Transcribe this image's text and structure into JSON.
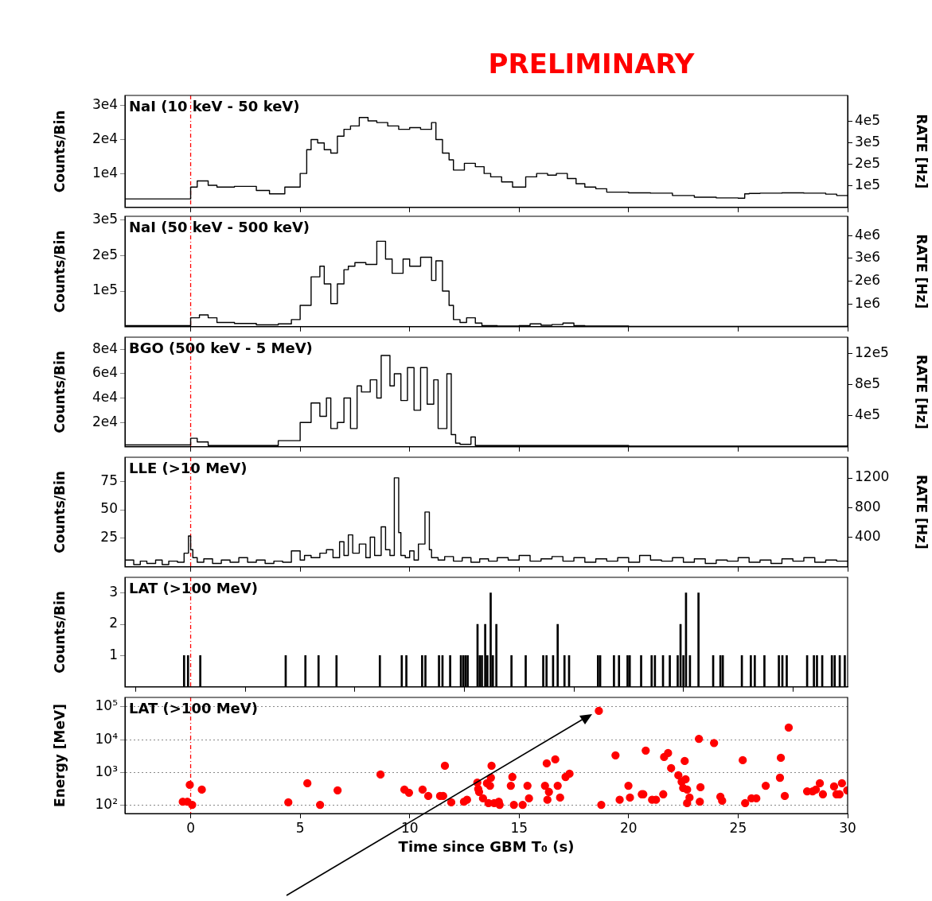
{
  "chart_data": [
    {
      "type": "step",
      "title": "PRELIMINARY",
      "ylabel": "Counts/Bin",
      "y2label": "RATE [Hz]",
      "annotations": [
        "NaI (10 keV - 50 keV)"
      ],
      "tick_labels": "y",
      "xlim": [
        -3,
        30
      ],
      "xticks": [
        0,
        5,
        10,
        15,
        20,
        25,
        30
      ],
      "ylim": [
        0,
        33000
      ],
      "yticks": [
        {
          "value": 10000,
          "label": "1e4"
        },
        {
          "value": 20000,
          "label": "2e4"
        },
        {
          "value": 30000,
          "label": "3e4"
        }
      ],
      "y2lim": [
        0,
        520000
      ],
      "y2ticks": [
        {
          "value": 100000,
          "label": "1e5"
        },
        {
          "value": 200000,
          "label": "2e5"
        },
        {
          "value": 300000,
          "label": "3e5"
        },
        {
          "value": 400000,
          "label": "4e5"
        }
      ],
      "ref_lines": [
        {
          "axis": "x",
          "value": 0,
          "color": "#ff0000",
          "line_style": "dashed"
        }
      ],
      "x": [
        -3,
        0,
        0.3,
        0.8,
        1.2,
        2,
        3,
        3.6,
        4.3,
        5,
        5.3,
        5.5,
        5.8,
        6.1,
        6.4,
        6.7,
        7,
        7.3,
        7.7,
        8.1,
        8.5,
        9,
        9.5,
        10,
        10.5,
        11,
        11.2,
        11.5,
        11.8,
        12,
        12.5,
        13,
        13.4,
        13.7,
        14.2,
        14.7,
        15.3,
        15.8,
        16.3,
        16.7,
        17.2,
        17.6,
        18,
        18.5,
        19,
        20,
        21,
        22,
        23,
        24,
        25,
        25.3,
        25.5,
        26,
        27,
        28,
        29,
        29.5,
        30
      ],
      "series": [
        {
          "color": "#000000",
          "values": [
            1200,
            2500,
            6000,
            7800,
            6500,
            6000,
            6200,
            5000,
            4000,
            6000,
            10000,
            17000,
            20000,
            19000,
            17000,
            16000,
            21000,
            23000,
            24000,
            26500,
            25500,
            25000,
            24000,
            23000,
            23500,
            23000,
            25000,
            20000,
            16000,
            14000,
            11000,
            13000,
            12000,
            10000,
            9000,
            7500,
            6000,
            9000,
            10000,
            9500,
            10000,
            8500,
            7000,
            6000,
            5500,
            4500,
            4300,
            4200,
            3500,
            3000,
            2800,
            2700,
            4000,
            4100,
            4200,
            4300,
            4200,
            3900,
            3500
          ]
        }
      ]
    },
    {
      "type": "step",
      "ylabel": "Counts/Bin",
      "y2label": "RATE [Hz]",
      "annotations": [
        "NaI (50 keV - 500 keV)"
      ],
      "tick_labels": "y",
      "xlim": [
        -3,
        30
      ],
      "xticks": [
        0,
        5,
        10,
        15,
        20,
        25,
        30
      ],
      "ylim": [
        0,
        310000
      ],
      "yticks": [
        {
          "value": 100000,
          "label": "1e5"
        },
        {
          "value": 200000,
          "label": "2e5"
        },
        {
          "value": 300000,
          "label": "3e5"
        }
      ],
      "y2lim": [
        0,
        4850000
      ],
      "y2ticks": [
        {
          "value": 1000000,
          "label": "1e6"
        },
        {
          "value": 2000000,
          "label": "2e6"
        },
        {
          "value": 3000000,
          "label": "3e6"
        },
        {
          "value": 4000000,
          "label": "4e6"
        }
      ],
      "ref_lines": [
        {
          "axis": "x",
          "value": 0,
          "color": "#ff0000",
          "line_style": "dashed"
        }
      ],
      "x": [
        -3,
        0,
        0.4,
        0.8,
        1.2,
        2,
        3,
        4,
        4.6,
        5,
        5.5,
        5.9,
        6.1,
        6.4,
        6.7,
        7,
        7.2,
        7.5,
        8,
        8.5,
        8.9,
        9.2,
        9.7,
        10,
        10.5,
        11,
        11.2,
        11.5,
        11.8,
        12,
        12.3,
        12.6,
        13,
        13.3,
        14,
        15,
        15.5,
        16,
        16.5,
        17,
        17.5,
        18,
        19,
        20,
        25,
        30
      ],
      "series": [
        {
          "color": "#000000",
          "values": [
            1000,
            3000,
            25000,
            33000,
            25000,
            12000,
            9000,
            5000,
            8000,
            20000,
            60000,
            140000,
            170000,
            120000,
            65000,
            120000,
            160000,
            170000,
            180000,
            175000,
            240000,
            190000,
            150000,
            190000,
            170000,
            195000,
            130000,
            185000,
            100000,
            60000,
            20000,
            12000,
            25000,
            10000,
            3000,
            2000,
            3000,
            8000,
            4000,
            6000,
            10000,
            3000,
            2000,
            2000,
            1000,
            1000
          ]
        }
      ]
    },
    {
      "type": "step",
      "ylabel": "Counts/Bin",
      "y2label": "RATE [Hz]",
      "annotations": [
        "BGO (500 keV - 5 MeV)"
      ],
      "tick_labels": "y",
      "xlim": [
        -3,
        30
      ],
      "xticks": [
        0,
        5,
        10,
        15,
        20,
        25,
        30
      ],
      "ylim": [
        0,
        90000
      ],
      "yticks": [
        {
          "value": 20000,
          "label": "2e4"
        },
        {
          "value": 40000,
          "label": "4e4"
        },
        {
          "value": 60000,
          "label": "6e4"
        },
        {
          "value": 80000,
          "label": "8e4"
        }
      ],
      "y2lim": [
        0,
        1410000
      ],
      "y2ticks": [
        {
          "value": 400000,
          "label": "4e5"
        },
        {
          "value": 800000,
          "label": "8e5"
        },
        {
          "value": 1200000,
          "label": "12e5"
        }
      ],
      "ref_lines": [
        {
          "axis": "x",
          "value": 0,
          "color": "#ff0000",
          "line_style": "dashed"
        }
      ],
      "x": [
        -3,
        0,
        0.3,
        0.8,
        1.5,
        4,
        5,
        5.5,
        5.9,
        6.2,
        6.4,
        6.7,
        7,
        7.3,
        7.6,
        7.8,
        8.2,
        8.5,
        8.7,
        9.1,
        9.3,
        9.6,
        9.9,
        10.2,
        10.5,
        10.8,
        11.1,
        11.3,
        11.7,
        11.9,
        12.1,
        12.3,
        12.8,
        13,
        13.3,
        20,
        30
      ],
      "series": [
        {
          "color": "#000000",
          "values": [
            500,
            1500,
            7000,
            4000,
            1000,
            1000,
            5000,
            20000,
            36000,
            25000,
            40000,
            15000,
            20000,
            40000,
            15000,
            50000,
            45000,
            55000,
            40000,
            75000,
            50000,
            60000,
            38000,
            65000,
            30000,
            65000,
            35000,
            55000,
            15000,
            60000,
            10000,
            3000,
            2000,
            8000,
            1000,
            1000,
            500
          ]
        }
      ]
    },
    {
      "type": "step",
      "ylabel": "Counts/Bin",
      "y2label": "RATE [Hz]",
      "annotations": [
        "LLE (>10 MeV)"
      ],
      "tick_labels": "y",
      "xlim": [
        -3,
        30
      ],
      "xticks": [
        0,
        5,
        10,
        15,
        20,
        25,
        30
      ],
      "ylim": [
        0,
        96
      ],
      "yticks": [
        25,
        50,
        75
      ],
      "y2lim": [
        0,
        1480
      ],
      "y2ticks": [
        400,
        800,
        1200
      ],
      "ref_lines": [
        {
          "axis": "x",
          "value": 0,
          "color": "#ff0000",
          "line_style": "dashed"
        }
      ],
      "x": [
        -3,
        -2.6,
        -2.3,
        -2,
        -1.6,
        -1.3,
        -1,
        -0.6,
        -0.3,
        -0.1,
        0,
        0.1,
        0.3,
        0.6,
        1,
        1.4,
        1.8,
        2.2,
        2.6,
        3,
        3.4,
        3.8,
        4.2,
        4.6,
        5,
        5.2,
        5.5,
        5.9,
        6.2,
        6.5,
        6.8,
        7,
        7.2,
        7.4,
        7.7,
        8,
        8.2,
        8.4,
        8.7,
        8.9,
        9.1,
        9.3,
        9.5,
        9.6,
        9.8,
        10,
        10.2,
        10.4,
        10.7,
        10.9,
        11,
        11.3,
        11.6,
        12,
        12.4,
        12.8,
        13.2,
        13.6,
        14,
        14.5,
        15,
        15.5,
        16,
        16.5,
        17,
        17.5,
        18,
        18.5,
        19,
        19.5,
        20,
        20.5,
        21,
        21.5,
        22,
        22.5,
        23,
        23.5,
        24,
        24.5,
        25,
        25.5,
        26,
        26.5,
        27,
        27.5,
        28,
        28.5,
        29,
        29.5,
        30
      ],
      "series": [
        {
          "color": "#000000",
          "values": [
            3,
            6,
            2,
            5,
            3,
            6,
            2,
            5,
            4,
            12,
            27,
            15,
            8,
            4,
            7,
            3,
            6,
            4,
            8,
            4,
            6,
            3,
            5,
            4,
            14,
            6,
            10,
            8,
            12,
            15,
            8,
            22,
            10,
            28,
            12,
            20,
            8,
            26,
            10,
            35,
            15,
            10,
            78,
            30,
            10,
            8,
            14,
            6,
            20,
            48,
            15,
            8,
            6,
            9,
            5,
            8,
            4,
            7,
            5,
            8,
            6,
            10,
            5,
            7,
            9,
            5,
            8,
            4,
            7,
            5,
            8,
            4,
            10,
            6,
            5,
            8,
            4,
            7,
            3,
            6,
            5,
            8,
            4,
            6,
            3,
            7,
            5,
            8,
            4,
            6,
            5
          ]
        }
      ]
    },
    {
      "type": "bar",
      "ylabel": "Counts/Bin",
      "annotations": [
        "LAT (>100 MeV)"
      ],
      "tick_labels": "y",
      "xlim": [
        -3,
        30
      ],
      "xticks": [
        0,
        5,
        10,
        15,
        20,
        25,
        30
      ],
      "ylim": [
        0,
        3.5
      ],
      "yticks": [
        1,
        2,
        3
      ],
      "ref_lines": [
        {
          "axis": "x",
          "value": 0,
          "color": "#ff0000",
          "line_style": "dashed"
        }
      ],
      "x": [
        -0.3,
        -0.12,
        0.44,
        4.34,
        5.24,
        5.84,
        6.66,
        8.64,
        9.64,
        9.85,
        10.57,
        10.72,
        11.34,
        11.5,
        11.85,
        12.34,
        12.45,
        12.55,
        12.65,
        13.1,
        13.2,
        13.3,
        13.45,
        13.55,
        13.7,
        13.8,
        13.96,
        14.65,
        15.3,
        16.1,
        16.25,
        16.55,
        16.76,
        17.07,
        17.28,
        18.6,
        18.7,
        19.33,
        19.56,
        19.95,
        20.05,
        20.57,
        21.05,
        21.2,
        21.57,
        21.88,
        22.24,
        22.37,
        22.5,
        22.62,
        22.8,
        23.19,
        23.86,
        24.19,
        24.3,
        25.17,
        25.58,
        25.76,
        26.2,
        26.86,
        27.02,
        27.22,
        28.15,
        28.46,
        28.6,
        28.84,
        29.28,
        29.41,
        29.64,
        29.87
      ],
      "series": [
        {
          "color": "#000000",
          "values": [
            1,
            1,
            1,
            1,
            1,
            1,
            1,
            1,
            1,
            1,
            1,
            1,
            1,
            1,
            1,
            1,
            1,
            1,
            1,
            2,
            1,
            1,
            2,
            1,
            3,
            1,
            2,
            1,
            1,
            1,
            1,
            1,
            2,
            1,
            1,
            1,
            1,
            1,
            1,
            1,
            1,
            1,
            1,
            1,
            1,
            1,
            1,
            2,
            1,
            3,
            1,
            3,
            1,
            1,
            1,
            1,
            1,
            1,
            1,
            1,
            1,
            1,
            1,
            1,
            1,
            1,
            1,
            1,
            1,
            1
          ]
        }
      ]
    },
    {
      "type": "scatter",
      "ylabel": "Energy [MeV]",
      "xlabel": "Time since GBM T₀ (s)",
      "annotations": [
        "LAT (>100 MeV)"
      ],
      "marker": "circle",
      "log": "y",
      "grid": "y",
      "xlim": [
        -3,
        30
      ],
      "xticks": [
        0,
        5,
        10,
        15,
        20,
        25,
        30
      ],
      "ylim": [
        57,
        195000
      ],
      "yticks": [
        {
          "value": 100,
          "label": "10²"
        },
        {
          "value": 1000,
          "label": "10³"
        },
        {
          "value": 10000,
          "label": "10⁴"
        },
        {
          "value": 100000,
          "label": "10⁵"
        }
      ],
      "ref_lines": [
        {
          "axis": "x",
          "value": 0,
          "color": "#ff0000",
          "line_style": "dashed"
        }
      ],
      "series": [
        {
          "color": "#ff0000",
          "x": [
            -0.04,
            0.07,
            0.51,
            5.33,
            5.91,
            8.67,
            10.59,
            10.85,
            11.61,
            11.9,
            13.09,
            13.13,
            13.17,
            13.35,
            13.53,
            13.67,
            13.74,
            14.69,
            16.18,
            16.26,
            16.29,
            16.65,
            16.76,
            16.87,
            17.12,
            17.3,
            18.64,
            19.4,
            19.59,
            20.06,
            20.6,
            20.78,
            21.07,
            21.25,
            21.62,
            21.8,
            21.94,
            22.27,
            22.42,
            22.49,
            22.56,
            22.6,
            22.67,
            22.78,
            23.21,
            23.25,
            23.28,
            23.9,
            24.19,
            24.27,
            25.83,
            26.26,
            26.91,
            26.95,
            27.13,
            27.31,
            28.15,
            28.4,
            28.55,
            28.73,
            28.87,
            29.38,
            29.49,
            29.63,
            29.74,
            29.98
          ],
          "values": [
            425,
            105,
            305,
            475,
            105,
            880,
            305,
            195,
            1620,
            125,
            500,
            320,
            260,
            165,
            475,
            400,
            1620,
            740,
            400,
            1920,
            150,
            2540,
            400,
            175,
            740,
            930,
            76000,
            3370,
            150,
            175,
            220,
            4700,
            150,
            150,
            3000,
            3950,
            1370,
            830,
            530,
            340,
            2270,
            630,
            305,
            175,
            10700,
            130,
            360,
            8000,
            185,
            140,
            165,
            400,
            700,
            2830,
            195,
            23500,
            270,
            270,
            305,
            475,
            220,
            380,
            220,
            220,
            475,
            290
          ]
        },
        {
          "color": "#ff0000",
          "x": [
            -0.36,
            -0.15,
            4.46,
            6.71,
            9.76,
            9.97,
            11.39,
            11.53,
            12.48,
            12.62,
            13.6,
            13.71,
            13.86,
            14.07,
            14.11,
            14.62,
            14.76,
            15.16,
            15.38,
            15.45,
            16.36,
            18.75,
            19.99,
            20.67,
            21.58,
            22.67,
            25.21,
            25.32,
            25.61
          ],
          "values": [
            130,
            130,
            125,
            290,
            305,
            245,
            195,
            195,
            130,
            150,
            118,
            700,
            118,
            130,
            105,
            400,
            105,
            105,
            400,
            165,
            260,
            105,
            400,
            220,
            220,
            118,
            2400,
            118,
            165
          ]
        }
      ]
    }
  ]
}
